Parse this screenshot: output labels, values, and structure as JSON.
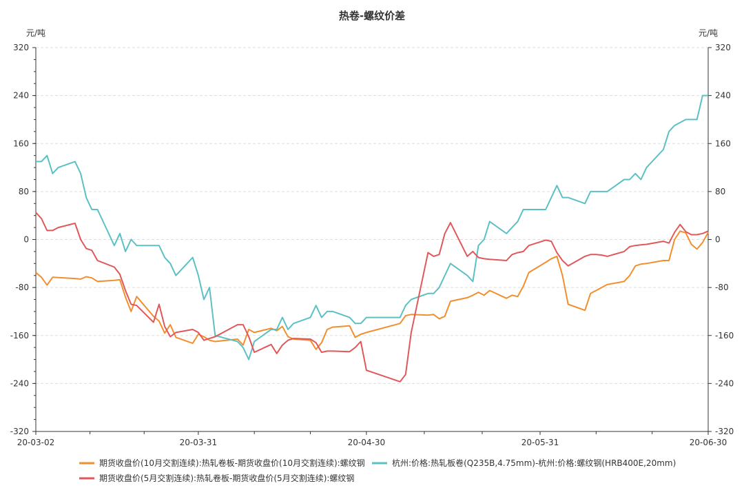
{
  "chart_data": {
    "type": "line",
    "title": "热卷-螺纹价差",
    "y_unit_left": "元/吨",
    "y_unit_right": "元/吨",
    "ylim": [
      -320,
      320
    ],
    "yticks": [
      -320,
      -240,
      -160,
      -80,
      0,
      80,
      160,
      240,
      320
    ],
    "xlim": [
      "2020-03-02",
      "2020-06-30"
    ],
    "x_tick_labels": [
      {
        "date": "2020-03-02",
        "label": "20-03-02"
      },
      {
        "date": "2020-03-31",
        "label": "20-03-31"
      },
      {
        "date": "2020-04-30",
        "label": "20-04-30"
      },
      {
        "date": "2020-05-31",
        "label": "20-05-31"
      },
      {
        "date": "2020-06-30",
        "label": "20-06-30"
      }
    ],
    "grid": true,
    "legend_position": "bottom",
    "series": [
      {
        "name": "期货收盘价(10月交割连续):热轧卷板-期货收盘价(10月交割连续):螺纹钢",
        "color": "#f28e2b",
        "points": [
          [
            "2020-03-02",
            -55
          ],
          [
            "2020-03-03",
            -63
          ],
          [
            "2020-03-04",
            -76
          ],
          [
            "2020-03-05",
            -63
          ],
          [
            "2020-03-09",
            -65
          ],
          [
            "2020-03-10",
            -66
          ],
          [
            "2020-03-11",
            -62
          ],
          [
            "2020-03-12",
            -64
          ],
          [
            "2020-03-13",
            -70
          ],
          [
            "2020-03-16",
            -68
          ],
          [
            "2020-03-17",
            -67
          ],
          [
            "2020-03-18",
            -96
          ],
          [
            "2020-03-19",
            -120
          ],
          [
            "2020-03-20",
            -95
          ],
          [
            "2020-03-23",
            -128
          ],
          [
            "2020-03-24",
            -136
          ],
          [
            "2020-03-25",
            -156
          ],
          [
            "2020-03-26",
            -142
          ],
          [
            "2020-03-27",
            -163
          ],
          [
            "2020-03-30",
            -173
          ],
          [
            "2020-03-31",
            -158
          ],
          [
            "2020-04-01",
            -162
          ],
          [
            "2020-04-02",
            -168
          ],
          [
            "2020-04-03",
            -170
          ],
          [
            "2020-04-07",
            -166
          ],
          [
            "2020-04-08",
            -176
          ],
          [
            "2020-04-09",
            -150
          ],
          [
            "2020-04-10",
            -155
          ],
          [
            "2020-04-13",
            -148
          ],
          [
            "2020-04-14",
            -152
          ],
          [
            "2020-04-15",
            -145
          ],
          [
            "2020-04-16",
            -162
          ],
          [
            "2020-04-17",
            -166
          ],
          [
            "2020-04-20",
            -168
          ],
          [
            "2020-04-21",
            -183
          ],
          [
            "2020-04-22",
            -172
          ],
          [
            "2020-04-23",
            -150
          ],
          [
            "2020-04-24",
            -146
          ],
          [
            "2020-04-27",
            -144
          ],
          [
            "2020-04-28",
            -163
          ],
          [
            "2020-04-29",
            -158
          ],
          [
            "2020-04-30",
            -155
          ],
          [
            "2020-05-06",
            -140
          ],
          [
            "2020-05-07",
            -127
          ],
          [
            "2020-05-08",
            -125
          ],
          [
            "2020-05-11",
            -126
          ],
          [
            "2020-05-12",
            -125
          ],
          [
            "2020-05-13",
            -132
          ],
          [
            "2020-05-14",
            -128
          ],
          [
            "2020-05-15",
            -103
          ],
          [
            "2020-05-18",
            -97
          ],
          [
            "2020-05-19",
            -93
          ],
          [
            "2020-05-20",
            -88
          ],
          [
            "2020-05-21",
            -93
          ],
          [
            "2020-05-22",
            -85
          ],
          [
            "2020-05-25",
            -98
          ],
          [
            "2020-05-26",
            -93
          ],
          [
            "2020-05-27",
            -95
          ],
          [
            "2020-05-28",
            -78
          ],
          [
            "2020-05-29",
            -55
          ],
          [
            "2020-06-01",
            -38
          ],
          [
            "2020-06-02",
            -32
          ],
          [
            "2020-06-03",
            -28
          ],
          [
            "2020-06-04",
            -60
          ],
          [
            "2020-06-05",
            -108
          ],
          [
            "2020-06-08",
            -118
          ],
          [
            "2020-06-09",
            -90
          ],
          [
            "2020-06-10",
            -85
          ],
          [
            "2020-06-11",
            -80
          ],
          [
            "2020-06-12",
            -75
          ],
          [
            "2020-06-15",
            -70
          ],
          [
            "2020-06-16",
            -60
          ],
          [
            "2020-06-17",
            -44
          ],
          [
            "2020-06-18",
            -41
          ],
          [
            "2020-06-19",
            -40
          ],
          [
            "2020-06-22",
            -35
          ],
          [
            "2020-06-23",
            -35
          ],
          [
            "2020-06-24",
            0
          ],
          [
            "2020-06-25",
            14
          ],
          [
            "2020-06-26",
            11
          ],
          [
            "2020-06-27",
            -8
          ],
          [
            "2020-06-28",
            -16
          ],
          [
            "2020-06-29",
            -5
          ],
          [
            "2020-06-30",
            12
          ]
        ]
      },
      {
        "name": "杭州:价格:热轧板卷(Q235B,4.75mm)-杭州:价格:螺纹钢(HRB400E,20mm)",
        "color": "#5bc0c4",
        "points": [
          [
            "2020-03-02",
            130
          ],
          [
            "2020-03-03",
            130
          ],
          [
            "2020-03-04",
            140
          ],
          [
            "2020-03-05",
            110
          ],
          [
            "2020-03-06",
            120
          ],
          [
            "2020-03-09",
            130
          ],
          [
            "2020-03-10",
            110
          ],
          [
            "2020-03-11",
            70
          ],
          [
            "2020-03-12",
            50
          ],
          [
            "2020-03-13",
            50
          ],
          [
            "2020-03-16",
            -10
          ],
          [
            "2020-03-17",
            10
          ],
          [
            "2020-03-18",
            -20
          ],
          [
            "2020-03-19",
            0
          ],
          [
            "2020-03-20",
            -10
          ],
          [
            "2020-03-23",
            -10
          ],
          [
            "2020-03-24",
            -10
          ],
          [
            "2020-03-25",
            -30
          ],
          [
            "2020-03-26",
            -40
          ],
          [
            "2020-03-27",
            -60
          ],
          [
            "2020-03-30",
            -30
          ],
          [
            "2020-03-31",
            -60
          ],
          [
            "2020-04-01",
            -100
          ],
          [
            "2020-04-02",
            -80
          ],
          [
            "2020-04-03",
            -160
          ],
          [
            "2020-04-07",
            -170
          ],
          [
            "2020-04-08",
            -180
          ],
          [
            "2020-04-09",
            -200
          ],
          [
            "2020-04-10",
            -170
          ],
          [
            "2020-04-13",
            -150
          ],
          [
            "2020-04-14",
            -150
          ],
          [
            "2020-04-15",
            -130
          ],
          [
            "2020-04-16",
            -150
          ],
          [
            "2020-04-17",
            -140
          ],
          [
            "2020-04-20",
            -130
          ],
          [
            "2020-04-21",
            -110
          ],
          [
            "2020-04-22",
            -130
          ],
          [
            "2020-04-23",
            -120
          ],
          [
            "2020-04-24",
            -120
          ],
          [
            "2020-04-27",
            -130
          ],
          [
            "2020-04-28",
            -140
          ],
          [
            "2020-04-29",
            -140
          ],
          [
            "2020-04-30",
            -130
          ],
          [
            "2020-05-06",
            -130
          ],
          [
            "2020-05-07",
            -110
          ],
          [
            "2020-05-08",
            -100
          ],
          [
            "2020-05-11",
            -90
          ],
          [
            "2020-05-12",
            -90
          ],
          [
            "2020-05-13",
            -80
          ],
          [
            "2020-05-15",
            -40
          ],
          [
            "2020-05-18",
            -60
          ],
          [
            "2020-05-19",
            -70
          ],
          [
            "2020-05-20",
            -10
          ],
          [
            "2020-05-21",
            0
          ],
          [
            "2020-05-22",
            30
          ],
          [
            "2020-05-25",
            10
          ],
          [
            "2020-05-26",
            20
          ],
          [
            "2020-05-27",
            30
          ],
          [
            "2020-05-28",
            50
          ],
          [
            "2020-05-29",
            50
          ],
          [
            "2020-06-01",
            50
          ],
          [
            "2020-06-02",
            70
          ],
          [
            "2020-06-03",
            90
          ],
          [
            "2020-06-04",
            70
          ],
          [
            "2020-06-05",
            70
          ],
          [
            "2020-06-08",
            60
          ],
          [
            "2020-06-09",
            80
          ],
          [
            "2020-06-10",
            80
          ],
          [
            "2020-06-11",
            80
          ],
          [
            "2020-06-12",
            80
          ],
          [
            "2020-06-15",
            100
          ],
          [
            "2020-06-16",
            100
          ],
          [
            "2020-06-17",
            110
          ],
          [
            "2020-06-18",
            100
          ],
          [
            "2020-06-19",
            120
          ],
          [
            "2020-06-22",
            150
          ],
          [
            "2020-06-23",
            180
          ],
          [
            "2020-06-24",
            190
          ],
          [
            "2020-06-26",
            200
          ],
          [
            "2020-06-27",
            200
          ],
          [
            "2020-06-28",
            200
          ],
          [
            "2020-06-29",
            240
          ],
          [
            "2020-06-30",
            240
          ]
        ]
      },
      {
        "name": "期货收盘价(5月交割连续):热轧卷板-期货收盘价(5月交割连续):螺纹钢",
        "color": "#e15759",
        "points": [
          [
            "2020-03-02",
            45
          ],
          [
            "2020-03-03",
            35
          ],
          [
            "2020-03-04",
            15
          ],
          [
            "2020-03-05",
            15
          ],
          [
            "2020-03-06",
            20
          ],
          [
            "2020-03-09",
            27
          ],
          [
            "2020-03-10",
            0
          ],
          [
            "2020-03-11",
            -15
          ],
          [
            "2020-03-12",
            -18
          ],
          [
            "2020-03-13",
            -35
          ],
          [
            "2020-03-16",
            -46
          ],
          [
            "2020-03-17",
            -58
          ],
          [
            "2020-03-18",
            -85
          ],
          [
            "2020-03-19",
            -108
          ],
          [
            "2020-03-20",
            -110
          ],
          [
            "2020-03-23",
            -138
          ],
          [
            "2020-03-24",
            -108
          ],
          [
            "2020-03-25",
            -145
          ],
          [
            "2020-03-26",
            -162
          ],
          [
            "2020-03-27",
            -155
          ],
          [
            "2020-03-30",
            -150
          ],
          [
            "2020-03-31",
            -155
          ],
          [
            "2020-04-01",
            -168
          ],
          [
            "2020-04-02",
            -165
          ],
          [
            "2020-04-03",
            -162
          ],
          [
            "2020-04-07",
            -142
          ],
          [
            "2020-04-08",
            -142
          ],
          [
            "2020-04-09",
            -162
          ],
          [
            "2020-04-10",
            -188
          ],
          [
            "2020-04-13",
            -175
          ],
          [
            "2020-04-14",
            -190
          ],
          [
            "2020-04-15",
            -176
          ],
          [
            "2020-04-16",
            -168
          ],
          [
            "2020-04-17",
            -165
          ],
          [
            "2020-04-20",
            -166
          ],
          [
            "2020-04-21",
            -172
          ],
          [
            "2020-04-22",
            -188
          ],
          [
            "2020-04-23",
            -186
          ],
          [
            "2020-04-24",
            -186
          ],
          [
            "2020-04-27",
            -187
          ],
          [
            "2020-04-28",
            -180
          ],
          [
            "2020-04-29",
            -170
          ],
          [
            "2020-04-30",
            -218
          ],
          [
            "2020-05-06",
            -237
          ],
          [
            "2020-05-07",
            -225
          ],
          [
            "2020-05-08",
            -155
          ],
          [
            "2020-05-11",
            -22
          ],
          [
            "2020-05-12",
            -28
          ],
          [
            "2020-05-13",
            -25
          ],
          [
            "2020-05-14",
            10
          ],
          [
            "2020-05-15",
            28
          ],
          [
            "2020-05-18",
            -28
          ],
          [
            "2020-05-19",
            -20
          ],
          [
            "2020-05-20",
            -30
          ],
          [
            "2020-05-21",
            -32
          ],
          [
            "2020-05-22",
            -33
          ],
          [
            "2020-05-25",
            -35
          ],
          [
            "2020-05-26",
            -25
          ],
          [
            "2020-05-27",
            -22
          ],
          [
            "2020-05-28",
            -20
          ],
          [
            "2020-05-29",
            -10
          ],
          [
            "2020-06-01",
            -1
          ],
          [
            "2020-06-02",
            -3
          ],
          [
            "2020-06-03",
            -22
          ],
          [
            "2020-06-04",
            -35
          ],
          [
            "2020-06-05",
            -44
          ],
          [
            "2020-06-08",
            -28
          ],
          [
            "2020-06-09",
            -25
          ],
          [
            "2020-06-10",
            -25
          ],
          [
            "2020-06-11",
            -26
          ],
          [
            "2020-06-12",
            -28
          ],
          [
            "2020-06-15",
            -20
          ],
          [
            "2020-06-16",
            -12
          ],
          [
            "2020-06-17",
            -10
          ],
          [
            "2020-06-18",
            -9
          ],
          [
            "2020-06-19",
            -8
          ],
          [
            "2020-06-22",
            -3
          ],
          [
            "2020-06-23",
            -6
          ],
          [
            "2020-06-24",
            12
          ],
          [
            "2020-06-25",
            25
          ],
          [
            "2020-06-26",
            13
          ],
          [
            "2020-06-27",
            8
          ],
          [
            "2020-06-28",
            8
          ],
          [
            "2020-06-29",
            10
          ],
          [
            "2020-06-30",
            14
          ]
        ]
      }
    ]
  }
}
